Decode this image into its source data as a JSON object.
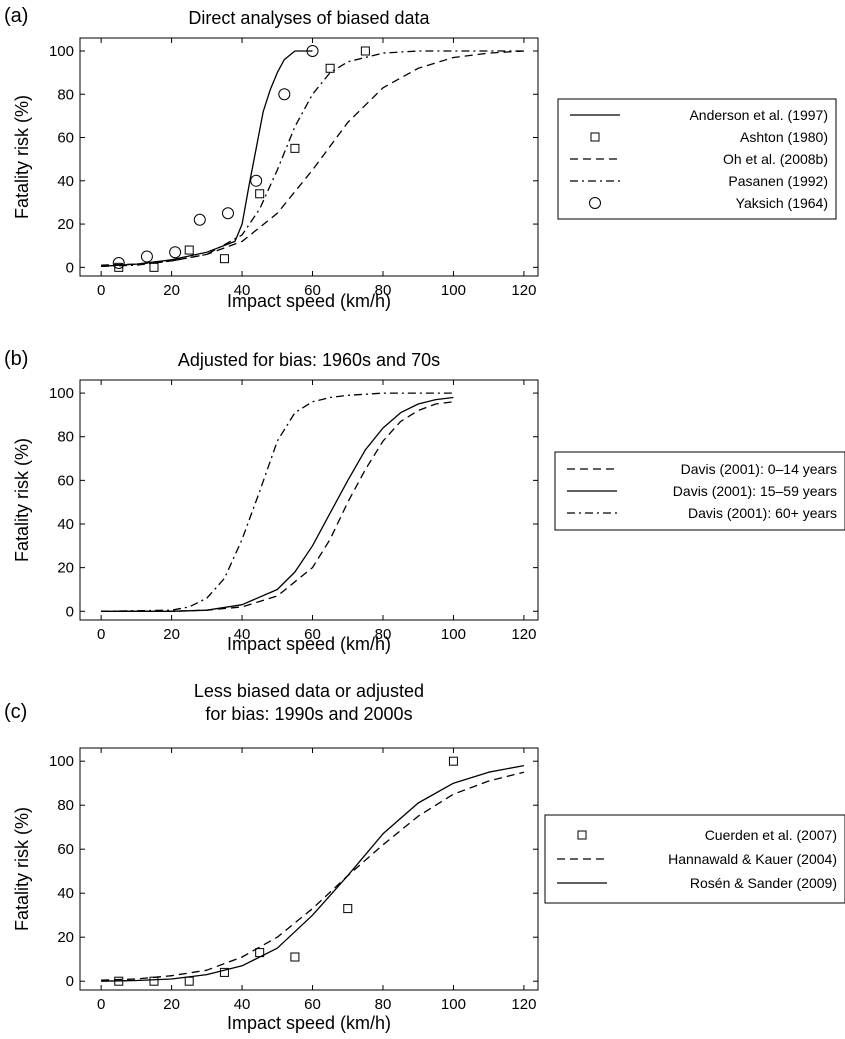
{
  "chart_data": [
    {
      "panel": "(a)",
      "type": "line",
      "title": [
        "Direct analyses of biased data"
      ],
      "xlabel": "Impact speed (km/h)",
      "ylabel": "Fatality risk (%)",
      "xlim": [
        -6,
        124
      ],
      "ylim": [
        -4,
        106
      ],
      "xticks": [
        0,
        20,
        40,
        60,
        80,
        100,
        120
      ],
      "yticks": [
        0,
        20,
        40,
        60,
        80,
        100
      ],
      "grid": false,
      "legend_position": "right",
      "series": [
        {
          "name": "Anderson et al. (1997)",
          "style": "solid",
          "marker": "none",
          "x": [
            0,
            10,
            20,
            30,
            38,
            40,
            42,
            44,
            46,
            48,
            50,
            52,
            55,
            60
          ],
          "y": [
            0.5,
            1.5,
            3.5,
            7,
            12,
            20,
            38,
            55,
            72,
            82,
            90,
            96,
            100,
            100
          ]
        },
        {
          "name": "Ashton (1980)",
          "style": "none",
          "marker": "square",
          "x": [
            5,
            15,
            25,
            35,
            45,
            55,
            65,
            75
          ],
          "y": [
            0,
            0,
            8,
            4,
            34,
            55,
            92,
            100
          ]
        },
        {
          "name": "Oh et al. (2008b)",
          "style": "dashed",
          "marker": "none",
          "x": [
            0,
            10,
            20,
            30,
            40,
            50,
            60,
            70,
            80,
            90,
            100,
            110,
            120
          ],
          "y": [
            1,
            1.5,
            3,
            6,
            12,
            25,
            45,
            67,
            83,
            92,
            97,
            99,
            100
          ]
        },
        {
          "name": "Pasanen (1992)",
          "style": "dashdot",
          "marker": "none",
          "x": [
            0,
            10,
            20,
            30,
            40,
            45,
            50,
            55,
            60,
            65,
            70,
            80,
            90,
            100,
            120
          ],
          "y": [
            0.5,
            1,
            3,
            6,
            15,
            27,
            45,
            65,
            80,
            90,
            95,
            99,
            100,
            100,
            100
          ]
        },
        {
          "name": "Yaksich (1964)",
          "style": "none",
          "marker": "circle",
          "x": [
            5,
            13,
            21,
            28,
            36,
            44,
            52,
            60
          ],
          "y": [
            2,
            5,
            7,
            22,
            25,
            40,
            80,
            100
          ]
        }
      ]
    },
    {
      "panel": "(b)",
      "type": "line",
      "title": [
        "Adjusted for bias: 1960s and 70s"
      ],
      "xlabel": "Impact speed (km/h)",
      "ylabel": "Fatality risk (%)",
      "xlim": [
        -6,
        124
      ],
      "ylim": [
        -4,
        106
      ],
      "xticks": [
        0,
        20,
        40,
        60,
        80,
        100,
        120
      ],
      "yticks": [
        0,
        20,
        40,
        60,
        80,
        100
      ],
      "grid": false,
      "legend_position": "right",
      "series": [
        {
          "name": "Davis (2001): 0–14 years",
          "style": "dashed",
          "marker": "none",
          "x": [
            0,
            20,
            30,
            40,
            50,
            60,
            65,
            70,
            75,
            80,
            85,
            90,
            95,
            100
          ],
          "y": [
            0,
            0,
            0.5,
            2,
            7,
            20,
            33,
            50,
            65,
            78,
            87,
            92,
            95,
            96
          ]
        },
        {
          "name": "Davis (2001): 15–59 years",
          "style": "solid",
          "marker": "none",
          "x": [
            0,
            20,
            30,
            40,
            50,
            55,
            60,
            65,
            70,
            75,
            80,
            85,
            90,
            95,
            100
          ],
          "y": [
            0,
            0,
            0.5,
            3,
            10,
            18,
            30,
            45,
            60,
            74,
            84,
            91,
            95,
            97,
            98
          ]
        },
        {
          "name": "Davis (2001): 60+ years",
          "style": "dashdot",
          "marker": "none",
          "x": [
            0,
            20,
            25,
            30,
            35,
            40,
            45,
            50,
            55,
            60,
            65,
            70,
            80,
            90,
            100
          ],
          "y": [
            0,
            0.5,
            2,
            6,
            15,
            33,
            55,
            78,
            91,
            96,
            98,
            99,
            100,
            100,
            100
          ]
        }
      ]
    },
    {
      "panel": "(c)",
      "type": "line",
      "title": [
        "Less biased data or adjusted",
        "for bias: 1990s and 2000s"
      ],
      "xlabel": "Impact speed (km/h)",
      "ylabel": "Fatality risk (%)",
      "xlim": [
        -6,
        124
      ],
      "ylim": [
        -4,
        106
      ],
      "xticks": [
        0,
        20,
        40,
        60,
        80,
        100,
        120
      ],
      "yticks": [
        0,
        20,
        40,
        60,
        80,
        100
      ],
      "grid": false,
      "legend_position": "right",
      "series": [
        {
          "name": "Cuerden et al. (2007)",
          "style": "none",
          "marker": "square",
          "x": [
            5,
            15,
            25,
            35,
            45,
            55,
            70,
            100
          ],
          "y": [
            0,
            0,
            0,
            4,
            13,
            11,
            33,
            100
          ]
        },
        {
          "name": "Hannawald & Kauer (2004)",
          "style": "dashed",
          "marker": "none",
          "x": [
            0,
            10,
            20,
            30,
            40,
            50,
            60,
            70,
            80,
            90,
            100,
            110,
            120
          ],
          "y": [
            0.5,
            1,
            2.5,
            5,
            11,
            20,
            33,
            48,
            62,
            75,
            85,
            91,
            95
          ]
        },
        {
          "name": "Rosén & Sander (2009)",
          "style": "solid",
          "marker": "none",
          "x": [
            0,
            10,
            20,
            30,
            40,
            50,
            60,
            70,
            80,
            90,
            100,
            110,
            120
          ],
          "y": [
            0,
            0.3,
            1,
            3,
            7,
            15,
            30,
            48,
            67,
            81,
            90,
            95,
            98
          ]
        }
      ]
    }
  ]
}
